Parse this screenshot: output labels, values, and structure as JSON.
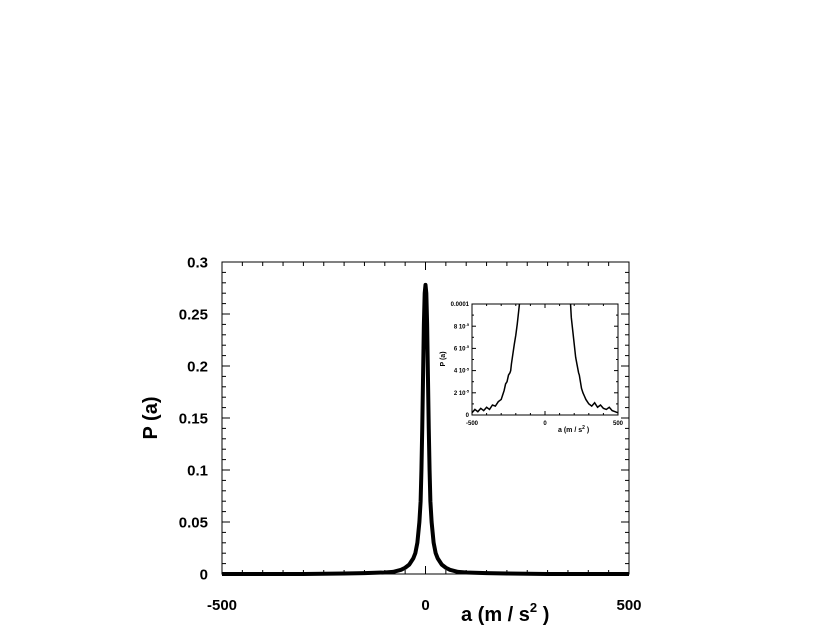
{
  "chart_data": [
    {
      "type": "line",
      "title": "",
      "xlabel": "a (m / s",
      "xlabel_sup": "2",
      "xlabel_end": " )",
      "ylabel": "P (a)",
      "xlim": [
        -500,
        500
      ],
      "ylim": [
        0,
        0.3
      ],
      "x_ticks": [
        {
          "value": -500,
          "label": "-500"
        },
        {
          "value": 0,
          "label": "0"
        },
        {
          "value": 500,
          "label": "500"
        }
      ],
      "y_ticks": [
        {
          "value": 0,
          "label": "0"
        },
        {
          "value": 0.05,
          "label": "0.05"
        },
        {
          "value": 0.1,
          "label": "0.1"
        },
        {
          "value": 0.15,
          "label": "0.15"
        },
        {
          "value": 0.2,
          "label": "0.2"
        },
        {
          "value": 0.25,
          "label": "0.25"
        },
        {
          "value": 0.3,
          "label": "0.3"
        }
      ],
      "grid": false,
      "line_color": "#000000",
      "series": [
        {
          "x": [
            -500,
            -300,
            -200,
            -150,
            -100,
            -80,
            -60,
            -50,
            -40,
            -30,
            -25,
            -20,
            -15,
            -12,
            -10,
            -8,
            -6,
            -4,
            -2,
            0,
            2,
            4,
            6,
            8,
            10,
            12,
            15,
            20,
            25,
            30,
            40,
            50,
            60,
            80,
            100,
            150,
            200,
            300,
            500
          ],
          "y": [
            0,
            0,
            0.0005,
            0.0008,
            0.0015,
            0.002,
            0.004,
            0.006,
            0.009,
            0.015,
            0.02,
            0.03,
            0.05,
            0.07,
            0.1,
            0.14,
            0.19,
            0.24,
            0.27,
            0.278,
            0.27,
            0.24,
            0.19,
            0.14,
            0.1,
            0.07,
            0.05,
            0.03,
            0.02,
            0.015,
            0.009,
            0.006,
            0.004,
            0.002,
            0.0015,
            0.0008,
            0.0005,
            0,
            0
          ]
        }
      ]
    },
    {
      "type": "line",
      "title": "",
      "xlabel": "a (m / s",
      "xlabel_sup": "2",
      "xlabel_end": " )",
      "ylabel": "P (a)",
      "xlim": [
        -500,
        500
      ],
      "ylim": [
        0,
        0.0001
      ],
      "x_ticks": [
        {
          "value": -500,
          "label": "-500"
        },
        {
          "value": 0,
          "label": "0"
        },
        {
          "value": 500,
          "label": "500"
        }
      ],
      "y_ticks": [
        {
          "value": 0,
          "label": "0",
          "exp": ""
        },
        {
          "value": 2e-05,
          "label": "2 10",
          "exp": "-5"
        },
        {
          "value": 4e-05,
          "label": "4 10",
          "exp": "-5"
        },
        {
          "value": 6e-05,
          "label": "6 10",
          "exp": "-5"
        },
        {
          "value": 8e-05,
          "label": "8 10",
          "exp": "-5"
        },
        {
          "value": 0.0001,
          "label": "0.0001",
          "exp": ""
        }
      ],
      "grid": false,
      "line_color": "#000000",
      "series": [
        {
          "x": [
            -500,
            -480,
            -460,
            -440,
            -420,
            -400,
            -380,
            -360,
            -340,
            -320,
            -300,
            -290,
            -280,
            -270,
            -260,
            -250,
            -240,
            -235,
            -230,
            -220,
            -210,
            -200,
            -190,
            -180,
            -175
          ],
          "y": [
            2e-06,
            5e-06,
            3e-06,
            6e-06,
            4e-06,
            7e-06,
            5e-06,
            9e-06,
            8e-06,
            1.2e-05,
            1.4e-05,
            1.8e-05,
            2.2e-05,
            2.8e-05,
            3e-05,
            3.6e-05,
            3.8e-05,
            4e-05,
            4.6e-05,
            5.5e-05,
            6.4e-05,
            7.2e-05,
            8.2e-05,
            9.4e-05,
            0.0001
          ]
        },
        {
          "x": [
            175,
            180,
            190,
            200,
            210,
            220,
            230,
            235,
            240,
            250,
            260,
            270,
            280,
            290,
            300,
            320,
            340,
            360,
            380,
            400,
            420,
            440,
            460,
            480,
            500
          ],
          "y": [
            0.0001,
            8.8e-05,
            7.6e-05,
            6.4e-05,
            5.2e-05,
            4.5e-05,
            3.8e-05,
            3.6e-05,
            3.2e-05,
            2.4e-05,
            2e-05,
            1.7e-05,
            1.4e-05,
            1.2e-05,
            1e-05,
            8e-06,
            1.1e-05,
            7e-06,
            9e-06,
            6e-06,
            5e-06,
            7e-06,
            4e-06,
            3e-06,
            2e-06
          ]
        }
      ]
    }
  ]
}
